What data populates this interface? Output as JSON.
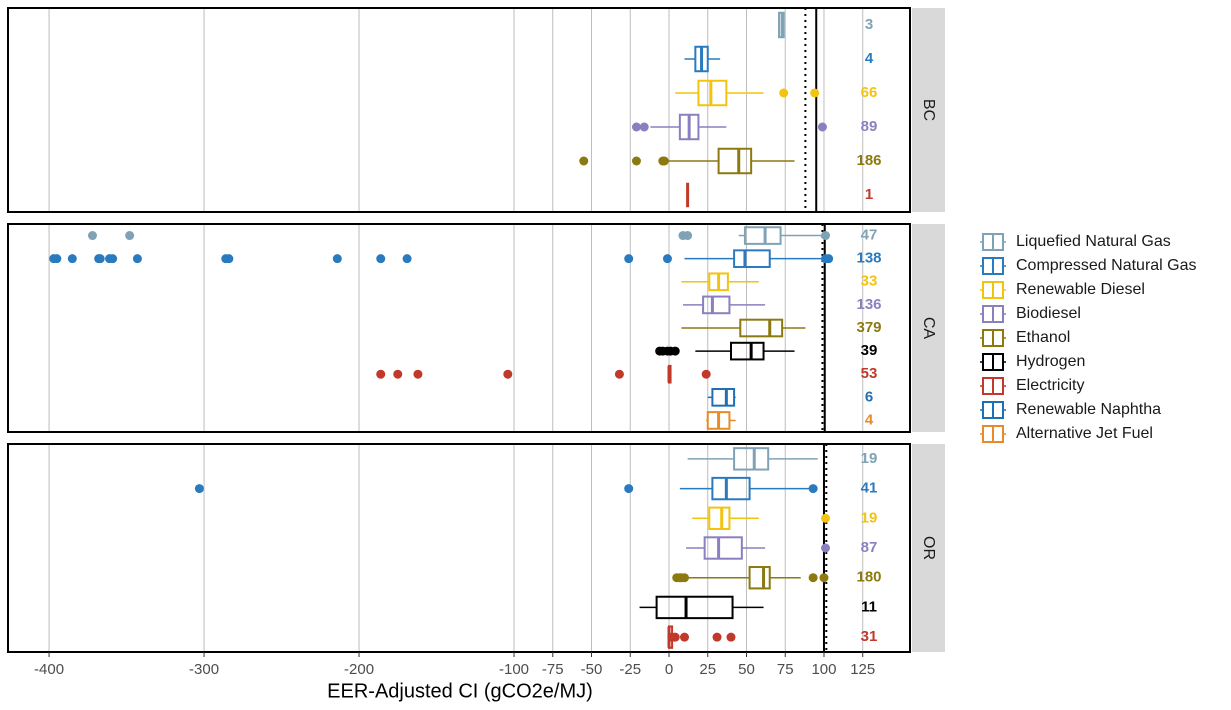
{
  "chart_data": {
    "type": "boxplot",
    "xlabel": "EER-Adjusted CI (gCO2e/MJ)",
    "xlim": [
      -426.5,
      155.5
    ],
    "xticks": [
      -400,
      -300,
      -200,
      -100,
      -75,
      -50,
      -25,
      0,
      25,
      50,
      75,
      100,
      125
    ],
    "grid": true,
    "legend_position": "right",
    "series": [
      {
        "name": "Liquefied Natural Gas",
        "color": "#7fa3b5"
      },
      {
        "name": "Compressed Natural Gas",
        "color": "#2a7abf"
      },
      {
        "name": "Renewable Diesel",
        "color": "#f2c40f"
      },
      {
        "name": "Biodiesel",
        "color": "#8c7fbf"
      },
      {
        "name": "Ethanol",
        "color": "#8c7a10"
      },
      {
        "name": "Hydrogen",
        "color": "#000000"
      },
      {
        "name": "Electricity",
        "color": "#c0392b"
      },
      {
        "name": "Renewable Naphtha",
        "color": "#1f6fb5"
      },
      {
        "name": "Alternative Jet Fuel",
        "color": "#e88a2a"
      }
    ],
    "panels": [
      {
        "label": "BC",
        "reference_solid": 95,
        "reference_dotted": 88,
        "boxes": [
          {
            "color": "#7fa3b5",
            "n": 3,
            "low": 71,
            "q1": 71,
            "median": 73,
            "q3": 74,
            "high": 74,
            "outliers": []
          },
          {
            "color": "#2a7abf",
            "n": 4,
            "low": 10,
            "q1": 17,
            "median": 21,
            "q3": 25,
            "high": 33,
            "outliers": []
          },
          {
            "color": "#f2c40f",
            "n": 66,
            "low": 4,
            "q1": 19,
            "median": 27,
            "q3": 37,
            "high": 61,
            "outliers": [
              74,
              94
            ]
          },
          {
            "color": "#8c7fbf",
            "n": 89,
            "low": -12,
            "q1": 7,
            "median": 13,
            "q3": 19,
            "high": 37,
            "outliers": [
              -21,
              -16,
              99
            ]
          },
          {
            "color": "#8c7a10",
            "n": 186,
            "low": -1,
            "q1": 32,
            "median": 45,
            "q3": 53,
            "high": 81,
            "outliers": [
              -55,
              -21,
              -4,
              -3
            ]
          },
          {
            "color": "#c0392b",
            "n": 1,
            "low": 12,
            "q1": 12,
            "median": 12,
            "q3": 12,
            "high": 12,
            "outliers": []
          }
        ]
      },
      {
        "label": "CA",
        "reference_solid": 100.5,
        "reference_dotted": 99,
        "boxes": [
          {
            "color": "#7fa3b5",
            "n": 47,
            "low": 45,
            "q1": 49,
            "median": 62,
            "q3": 72,
            "high": 99,
            "outliers": [
              -372,
              -348,
              9,
              12,
              101
            ]
          },
          {
            "color": "#2a7abf",
            "n": 138,
            "low": 10,
            "q1": 42,
            "median": 49,
            "q3": 65,
            "high": 99,
            "outliers": [
              -397,
              -395,
              -385,
              -368,
              -367,
              -361,
              -359,
              -343,
              -286,
              -284,
              -214,
              -186,
              -169,
              -26,
              -1,
              101,
              103
            ]
          },
          {
            "color": "#f2c40f",
            "n": 33,
            "low": 8,
            "q1": 26,
            "median": 32,
            "q3": 38,
            "high": 58,
            "outliers": []
          },
          {
            "color": "#8c7fbf",
            "n": 136,
            "low": 9,
            "q1": 22,
            "median": 28,
            "q3": 39,
            "high": 62,
            "outliers": []
          },
          {
            "color": "#8c7a10",
            "n": 379,
            "low": 8,
            "q1": 46,
            "median": 65,
            "q3": 73,
            "high": 88,
            "outliers": []
          },
          {
            "color": "#000000",
            "n": 39,
            "low": 17,
            "q1": 40,
            "median": 53,
            "q3": 61,
            "high": 81,
            "outliers": [
              -6,
              -4,
              -1,
              1,
              4
            ]
          },
          {
            "color": "#c0392b",
            "n": 53,
            "low": 0,
            "q1": 0,
            "median": 0,
            "q3": 1,
            "high": 1,
            "outliers": [
              -186,
              -175,
              -162,
              -104,
              -32,
              24
            ]
          },
          {
            "color": "#1f6fb5",
            "n": 6,
            "low": 25,
            "q1": 28,
            "median": 37,
            "q3": 42,
            "high": 43,
            "outliers": []
          },
          {
            "color": "#e88a2a",
            "n": 4,
            "low": 24,
            "q1": 25,
            "median": 32,
            "q3": 39,
            "high": 43,
            "outliers": []
          }
        ]
      },
      {
        "label": "OR",
        "reference_solid": 100,
        "reference_dotted": 101.5,
        "boxes": [
          {
            "color": "#7fa3b5",
            "n": 19,
            "low": 12,
            "q1": 42,
            "median": 55,
            "q3": 64,
            "high": 96,
            "outliers": []
          },
          {
            "color": "#2a7abf",
            "n": 41,
            "low": 7,
            "q1": 28,
            "median": 37,
            "q3": 52,
            "high": 93,
            "outliers": [
              -303,
              -26,
              93
            ]
          },
          {
            "color": "#f2c40f",
            "n": 19,
            "low": 15,
            "q1": 26,
            "median": 34,
            "q3": 39,
            "high": 58,
            "outliers": [
              101
            ]
          },
          {
            "color": "#8c7fbf",
            "n": 87,
            "low": 11,
            "q1": 23,
            "median": 32,
            "q3": 47,
            "high": 62,
            "outliers": [
              101
            ]
          },
          {
            "color": "#8c7a10",
            "n": 180,
            "low": 11,
            "q1": 52,
            "median": 61,
            "q3": 65,
            "high": 85,
            "outliers": [
              5,
              7,
              8,
              10,
              93,
              100
            ]
          },
          {
            "color": "#000000",
            "n": 11,
            "low": -19,
            "q1": -8,
            "median": 11,
            "q3": 41,
            "high": 61,
            "outliers": []
          },
          {
            "color": "#c0392b",
            "n": 31,
            "low": -1,
            "q1": 0,
            "median": 0,
            "q3": 2,
            "high": 2,
            "outliers": [
              2,
              4,
              10,
              31,
              40
            ]
          }
        ]
      }
    ]
  }
}
